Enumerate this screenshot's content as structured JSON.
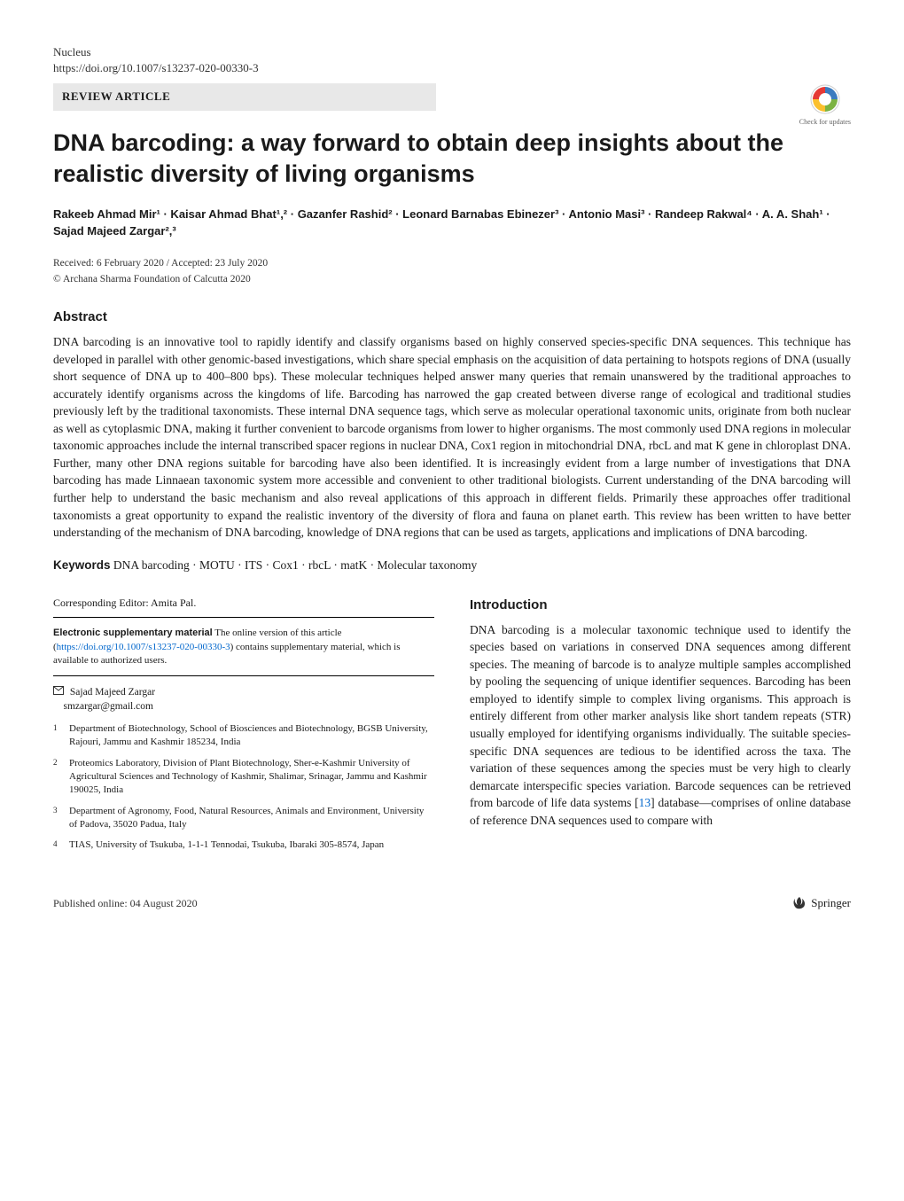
{
  "header": {
    "journal": "Nucleus",
    "doi": "https://doi.org/10.1007/s13237-020-00330-3",
    "article_type": "REVIEW ARTICLE",
    "check_updates_label": "Check for updates"
  },
  "title": "DNA barcoding: a way forward to obtain deep insights about the realistic diversity of living organisms",
  "authors_html": "Rakeeb Ahmad Mir¹ · Kaisar Ahmad Bhat¹,² · Gazanfer Rashid² · Leonard Barnabas Ebinezer³ · Antonio Masi³ · Randeep Rakwal⁴ · A. A. Shah¹ · Sajad Majeed Zargar²,³",
  "dates": "Received: 6 February 2020 / Accepted: 23 July 2020",
  "copyright": "© Archana Sharma Foundation of Calcutta 2020",
  "abstract": {
    "heading": "Abstract",
    "text": "DNA barcoding is an innovative tool to rapidly identify and classify organisms based on highly conserved species-specific DNA sequences. This technique has developed in parallel with other genomic-based investigations, which share special emphasis on the acquisition of data pertaining to hotspots regions of DNA (usually short sequence of DNA up to 400–800 bps). These molecular techniques helped answer many queries that remain unanswered by the traditional approaches to accurately identify organisms across the kingdoms of life. Barcoding has narrowed the gap created between diverse range of ecological and traditional studies previously left by the traditional taxonomists. These internal DNA sequence tags, which serve as molecular operational taxonomic units, originate from both nuclear as well as cytoplasmic DNA, making it further convenient to barcode organisms from lower to higher organisms. The most commonly used DNA regions in molecular taxonomic approaches include the internal transcribed spacer regions in nuclear DNA, Cox1 region in mitochondrial DNA, rbcL and mat K gene in chloroplast DNA. Further, many other DNA regions suitable for barcoding have also been identified. It is increasingly evident from a large number of investigations that DNA barcoding has made Linnaean taxonomic system more accessible and convenient to other traditional biologists. Current understanding of the DNA barcoding will further help to understand the basic mechanism and also reveal applications of this approach in different fields. Primarily these approaches offer traditional taxonomists a great opportunity to expand the realistic inventory of the diversity of flora and fauna on planet earth. This review has been written to have better understanding of the mechanism of DNA barcoding, knowledge of DNA regions that can be used as targets, applications and implications of DNA barcoding."
  },
  "keywords": {
    "label": "Keywords",
    "text": "DNA barcoding · MOTU · ITS · Cox1 · rbcL · matK · Molecular taxonomy"
  },
  "left_col": {
    "corresponding_editor": "Corresponding Editor: Amita Pal.",
    "supp_label": "Electronic supplementary material",
    "supp_text_before": "The online version of this article (",
    "supp_doi": "https://doi.org/10.1007/s13237-020-00330-3",
    "supp_text_after": ") contains supplementary material, which is available to authorized users.",
    "corr_author_name": "Sajad Majeed Zargar",
    "corr_author_email": "smzargar@gmail.com",
    "affiliations": [
      {
        "num": "1",
        "text": "Department of Biotechnology, School of Biosciences and Biotechnology, BGSB University, Rajouri, Jammu and Kashmir 185234, India"
      },
      {
        "num": "2",
        "text": "Proteomics Laboratory, Division of Plant Biotechnology, Sher-e-Kashmir University of Agricultural Sciences and Technology of Kashmir, Shalimar, Srinagar, Jammu and Kashmir 190025, India"
      },
      {
        "num": "3",
        "text": "Department of Agronomy, Food, Natural Resources, Animals and Environment, University of Padova, 35020 Padua, Italy"
      },
      {
        "num": "4",
        "text": "TIAS, University of Tsukuba, 1-1-1 Tennodai, Tsukuba, Ibaraki 305-8574, Japan"
      }
    ]
  },
  "right_col": {
    "intro_heading": "Introduction",
    "intro_text_1": "DNA barcoding is a molecular taxonomic technique used to identify the species based on variations in conserved DNA sequences among different species. The meaning of barcode is to analyze multiple samples accomplished by pooling the sequencing of unique identifier sequences. Barcoding has been employed to identify simple to complex living organisms. This approach is entirely different from other marker analysis like short tandem repeats (STR) usually employed for identifying organisms individually. The suitable species-specific DNA sequences are tedious to be identified across the taxa. The variation of these sequences among the species must be very high to clearly demarcate interspecific species variation. Barcode sequences can be retrieved from barcode of life data systems [",
    "ref_13": "13",
    "intro_text_2": "] database—comprises of online database of reference DNA sequences used to compare with"
  },
  "footer": {
    "pub_date": "Published online: 04 August 2020",
    "publisher": "Springer"
  },
  "colors": {
    "text": "#1a1a1a",
    "link": "#0066cc",
    "bg": "#ffffff",
    "bar_bg": "#e8e8e8",
    "crossmark_blue": "#3b7bbf",
    "crossmark_green": "#7cb342",
    "crossmark_yellow": "#fbc02d",
    "crossmark_red": "#e53935"
  }
}
